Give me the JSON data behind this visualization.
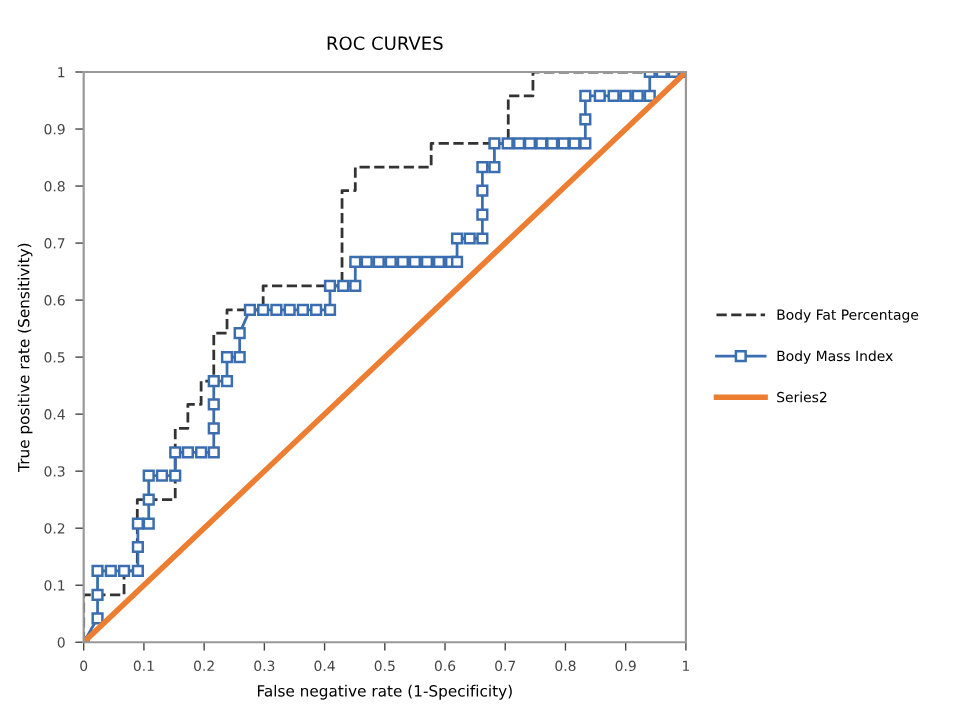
{
  "chart_data": {
    "type": "line",
    "title": "ROC CURVES",
    "xlabel": "False negative rate (1-Specificity)",
    "ylabel": "True positive rate (Sensitivity)",
    "xlim": [
      0,
      1
    ],
    "ylim": [
      0,
      1
    ],
    "xticks": [
      0,
      0.1,
      0.2,
      0.3,
      0.4,
      0.5,
      0.6,
      0.7,
      0.8,
      0.9,
      1
    ],
    "yticks": [
      0,
      0.1,
      0.2,
      0.3,
      0.4,
      0.5,
      0.6,
      0.7,
      0.8,
      0.9,
      1
    ],
    "grid": false,
    "legend": "right",
    "series": [
      {
        "name": "Body Fat Percentage",
        "color": "#333333",
        "line_style": "dashed",
        "marker": "none",
        "x": [
          0,
          0,
          0.067,
          0.067,
          0.089,
          0.089,
          0.152,
          0.152,
          0.173,
          0.173,
          0.195,
          0.195,
          0.216,
          0.216,
          0.238,
          0.238,
          0.298,
          0.298,
          0.429,
          0.429,
          0.451,
          0.451,
          0.577,
          0.577,
          0.705,
          0.705,
          0.746,
          0.746,
          1
        ],
        "values": [
          0,
          0.083,
          0.083,
          0.125,
          0.125,
          0.25,
          0.25,
          0.375,
          0.375,
          0.417,
          0.417,
          0.458,
          0.458,
          0.542,
          0.542,
          0.583,
          0.583,
          0.625,
          0.625,
          0.792,
          0.792,
          0.833,
          0.833,
          0.875,
          0.875,
          0.958,
          0.958,
          1,
          1
        ]
      },
      {
        "name": "Body Mass Index",
        "color": "#3b6eb0",
        "line_style": "solid",
        "marker": "square",
        "x": [
          0,
          0.023,
          0.023,
          0.023,
          0.045,
          0.067,
          0.09,
          0.09,
          0.09,
          0.108,
          0.108,
          0.108,
          0.13,
          0.152,
          0.152,
          0.173,
          0.195,
          0.216,
          0.216,
          0.216,
          0.216,
          0.238,
          0.238,
          0.259,
          0.259,
          0.276,
          0.298,
          0.32,
          0.342,
          0.364,
          0.386,
          0.409,
          0.409,
          0.431,
          0.451,
          0.451,
          0.47,
          0.49,
          0.51,
          0.53,
          0.55,
          0.57,
          0.59,
          0.61,
          0.62,
          0.62,
          0.641,
          0.662,
          0.662,
          0.662,
          0.662,
          0.682,
          0.682,
          0.704,
          0.723,
          0.741,
          0.76,
          0.778,
          0.797,
          0.815,
          0.833,
          0.833,
          0.833,
          0.857,
          0.88,
          0.9,
          0.92,
          0.94,
          0.94,
          0.96,
          0.98,
          1
        ],
        "values": [
          0,
          0.042,
          0.083,
          0.125,
          0.125,
          0.125,
          0.125,
          0.167,
          0.208,
          0.208,
          0.25,
          0.292,
          0.292,
          0.292,
          0.333,
          0.333,
          0.333,
          0.333,
          0.375,
          0.417,
          0.458,
          0.458,
          0.5,
          0.5,
          0.542,
          0.583,
          0.583,
          0.583,
          0.583,
          0.583,
          0.583,
          0.583,
          0.625,
          0.625,
          0.625,
          0.667,
          0.667,
          0.667,
          0.667,
          0.667,
          0.667,
          0.667,
          0.667,
          0.667,
          0.667,
          0.708,
          0.708,
          0.708,
          0.75,
          0.792,
          0.833,
          0.833,
          0.875,
          0.875,
          0.875,
          0.875,
          0.875,
          0.875,
          0.875,
          0.875,
          0.875,
          0.917,
          0.958,
          0.958,
          0.958,
          0.958,
          0.958,
          0.958,
          1,
          1,
          1,
          1
        ]
      },
      {
        "name": "Series2",
        "color": "#ed7d31",
        "line_style": "solid",
        "marker": "none",
        "x": [
          0,
          1
        ],
        "values": [
          0,
          1
        ]
      }
    ]
  }
}
